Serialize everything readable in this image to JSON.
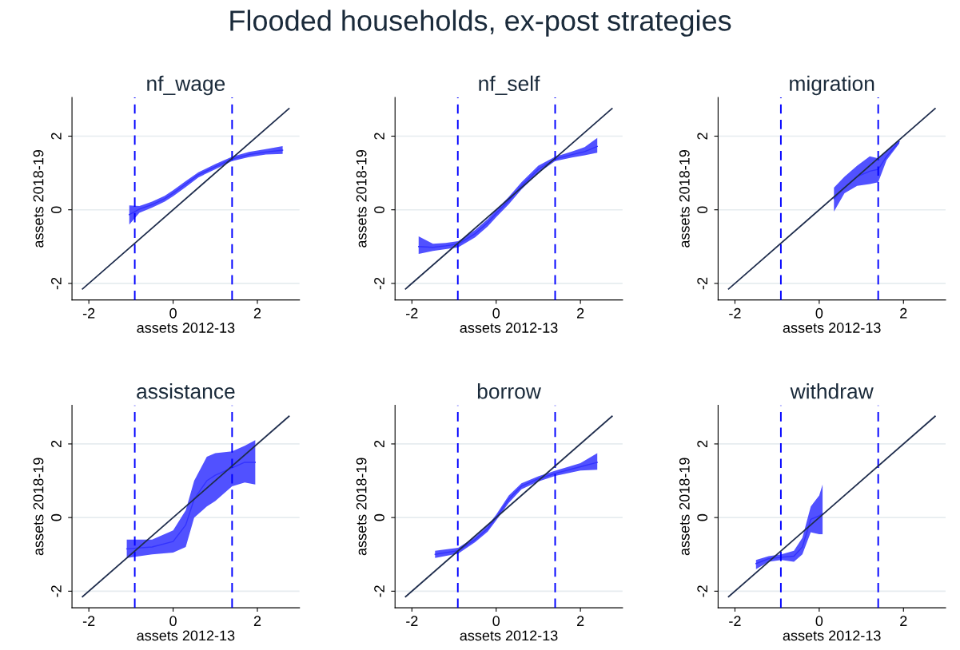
{
  "chart_data": [
    {
      "type": "line",
      "title": "nf_wage",
      "xlabel": "assets 2012-13",
      "ylabel": "assets 2018-19",
      "annotations": [
        "Flooded households, ex-post strategies"
      ],
      "xlim": [
        -2.4,
        3.0
      ],
      "ylim": [
        -2.45,
        3.05
      ],
      "xticks": [
        -2,
        0,
        2
      ],
      "yticks": [
        -2,
        0,
        2
      ],
      "grid": "y",
      "legend": false,
      "series": [
        {
          "color": "#3333ff",
          "x": [
            -1.04,
            -0.8,
            -0.5,
            -0.2,
            0,
            0.3,
            0.6,
            1.0,
            1.4,
            1.8,
            2.2,
            2.6
          ],
          "values": [
            -0.13,
            0.02,
            0.14,
            0.3,
            0.45,
            0.7,
            0.95,
            1.17,
            1.38,
            1.5,
            1.57,
            1.62
          ],
          "lower": [
            -0.4,
            -0.08,
            0.06,
            0.22,
            0.37,
            0.62,
            0.88,
            1.1,
            1.32,
            1.43,
            1.5,
            1.52
          ],
          "upper": [
            0.12,
            0.1,
            0.22,
            0.38,
            0.53,
            0.78,
            1.02,
            1.24,
            1.44,
            1.57,
            1.65,
            1.73
          ]
        },
        {
          "color": "#1f2d4d",
          "x": [
            -2.15,
            2.75
          ],
          "values": [
            -2.15,
            2.75
          ]
        }
      ],
      "ref_lines": [
        {
          "axis": "x",
          "value": -0.91,
          "color": "#0000ff",
          "line_style": "dashed"
        },
        {
          "axis": "x",
          "value": 1.4,
          "color": "#0000ff",
          "line_style": "dashed"
        }
      ]
    },
    {
      "type": "line",
      "title": "nf_self",
      "xlabel": "assets 2012-13",
      "ylabel": "assets 2018-19",
      "xlim": [
        -2.4,
        3.0
      ],
      "ylim": [
        -2.45,
        3.05
      ],
      "xticks": [
        -2,
        0,
        2
      ],
      "yticks": [
        -2,
        0,
        2
      ],
      "grid": "y",
      "legend": false,
      "series": [
        {
          "color": "#3333ff",
          "x": [
            -1.84,
            -1.5,
            -1.2,
            -0.9,
            -0.5,
            -0.2,
            0,
            0.3,
            0.6,
            1.0,
            1.4,
            1.8,
            2.1,
            2.4
          ],
          "values": [
            -1.0,
            -1.02,
            -0.98,
            -0.93,
            -0.65,
            -0.35,
            -0.1,
            0.25,
            0.65,
            1.1,
            1.38,
            1.5,
            1.58,
            1.72
          ],
          "lower": [
            -1.2,
            -1.12,
            -1.07,
            -1.02,
            -0.75,
            -0.45,
            -0.2,
            0.15,
            0.55,
            1.0,
            1.32,
            1.42,
            1.48,
            1.55
          ],
          "upper": [
            -0.72,
            -0.92,
            -0.9,
            -0.85,
            -0.55,
            -0.25,
            0.0,
            0.35,
            0.75,
            1.2,
            1.44,
            1.58,
            1.7,
            1.95
          ]
        },
        {
          "color": "#1f2d4d",
          "x": [
            -2.15,
            2.75
          ],
          "values": [
            -2.15,
            2.75
          ]
        }
      ],
      "ref_lines": [
        {
          "axis": "x",
          "value": -0.91,
          "color": "#0000ff",
          "line_style": "dashed"
        },
        {
          "axis": "x",
          "value": 1.4,
          "color": "#0000ff",
          "line_style": "dashed"
        }
      ]
    },
    {
      "type": "line",
      "title": "migration",
      "xlabel": "assets 2012-13",
      "ylabel": "assets 2018-19",
      "xlim": [
        -2.4,
        3.0
      ],
      "ylim": [
        -2.45,
        3.05
      ],
      "xticks": [
        -2,
        0,
        2
      ],
      "yticks": [
        -2,
        0,
        2
      ],
      "grid": "y",
      "legend": false,
      "series": [
        {
          "color": "#3333ff",
          "x": [
            0.35,
            0.6,
            0.9,
            1.2,
            1.4,
            1.6,
            1.9
          ],
          "values": [
            0.3,
            0.6,
            0.9,
            1.05,
            1.1,
            1.45,
            1.85
          ],
          "lower": [
            -0.05,
            0.45,
            0.65,
            0.7,
            0.75,
            1.35,
            1.8
          ],
          "upper": [
            0.6,
            0.9,
            1.2,
            1.45,
            1.4,
            1.6,
            1.88
          ]
        },
        {
          "color": "#1f2d4d",
          "x": [
            -2.15,
            2.75
          ],
          "values": [
            -2.15,
            2.75
          ]
        }
      ],
      "ref_lines": [
        {
          "axis": "x",
          "value": -0.91,
          "color": "#0000ff",
          "line_style": "dashed"
        },
        {
          "axis": "x",
          "value": 1.4,
          "color": "#0000ff",
          "line_style": "dashed"
        }
      ]
    },
    {
      "type": "line",
      "title": "assistance",
      "xlabel": "assets 2012-13",
      "ylabel": "assets 2018-19",
      "xlim": [
        -2.4,
        3.0
      ],
      "ylim": [
        -2.45,
        3.05
      ],
      "xticks": [
        -2,
        0,
        2
      ],
      "yticks": [
        -2,
        0,
        2
      ],
      "grid": "y",
      "legend": false,
      "series": [
        {
          "color": "#3333ff",
          "x": [
            -1.1,
            -0.5,
            0,
            0.3,
            0.5,
            0.8,
            1.0,
            1.4,
            1.7,
            1.95
          ],
          "values": [
            -0.85,
            -0.8,
            -0.65,
            -0.2,
            0.5,
            1.0,
            1.15,
            1.35,
            1.5,
            1.5
          ],
          "lower": [
            -1.1,
            -1.0,
            -0.95,
            -0.8,
            0.0,
            0.3,
            0.45,
            0.85,
            0.95,
            0.9
          ],
          "upper": [
            -0.6,
            -0.6,
            -0.35,
            0.2,
            1.0,
            1.65,
            1.75,
            1.8,
            1.95,
            2.1
          ]
        },
        {
          "color": "#1f2d4d",
          "x": [
            -2.15,
            2.75
          ],
          "values": [
            -2.15,
            2.75
          ]
        }
      ],
      "ref_lines": [
        {
          "axis": "x",
          "value": -0.91,
          "color": "#0000ff",
          "line_style": "dashed"
        },
        {
          "axis": "x",
          "value": 1.4,
          "color": "#0000ff",
          "line_style": "dashed"
        }
      ]
    },
    {
      "type": "line",
      "title": "borrow",
      "xlabel": "assets 2012-13",
      "ylabel": "assets 2018-19",
      "xlim": [
        -2.4,
        3.0
      ],
      "ylim": [
        -2.45,
        3.05
      ],
      "xticks": [
        -2,
        0,
        2
      ],
      "yticks": [
        -2,
        0,
        2
      ],
      "grid": "y",
      "legend": false,
      "series": [
        {
          "color": "#3333ff",
          "x": [
            -1.45,
            -0.9,
            -0.5,
            -0.2,
            0,
            0.3,
            0.6,
            1.0,
            1.4,
            2.0,
            2.4
          ],
          "values": [
            -1.0,
            -0.9,
            -0.6,
            -0.3,
            0.0,
            0.5,
            0.85,
            1.05,
            1.2,
            1.38,
            1.5
          ],
          "lower": [
            -1.1,
            -0.98,
            -0.67,
            -0.38,
            -0.08,
            0.4,
            0.77,
            0.98,
            1.13,
            1.28,
            1.3
          ],
          "upper": [
            -0.9,
            -0.82,
            -0.53,
            -0.22,
            0.08,
            0.6,
            0.93,
            1.12,
            1.27,
            1.48,
            1.75
          ]
        },
        {
          "color": "#1f2d4d",
          "x": [
            -2.15,
            2.75
          ],
          "values": [
            -2.15,
            2.75
          ]
        }
      ],
      "ref_lines": [
        {
          "axis": "x",
          "value": -0.91,
          "color": "#0000ff",
          "line_style": "dashed"
        },
        {
          "axis": "x",
          "value": 1.4,
          "color": "#0000ff",
          "line_style": "dashed"
        }
      ]
    },
    {
      "type": "line",
      "title": "withdraw",
      "xlabel": "assets 2012-13",
      "ylabel": "assets 2018-19",
      "xlim": [
        -2.4,
        3.0
      ],
      "ylim": [
        -2.45,
        3.05
      ],
      "xticks": [
        -2,
        0,
        2
      ],
      "yticks": [
        -2,
        0,
        2
      ],
      "grid": "y",
      "legend": false,
      "series": [
        {
          "color": "#3333ff",
          "x": [
            -1.5,
            -1.2,
            -0.9,
            -0.6,
            -0.4,
            -0.2,
            0.0,
            0.08
          ],
          "values": [
            -1.25,
            -1.12,
            -1.08,
            -1.05,
            -0.8,
            -0.05,
            0.05,
            0.1
          ],
          "lower": [
            -1.4,
            -1.2,
            -1.15,
            -1.2,
            -1.0,
            -0.4,
            -0.45,
            -0.45
          ],
          "upper": [
            -1.15,
            -1.05,
            -1.0,
            -0.9,
            -0.55,
            0.3,
            0.6,
            0.9
          ]
        },
        {
          "color": "#1f2d4d",
          "x": [
            -2.15,
            2.75
          ],
          "values": [
            -2.15,
            2.75
          ]
        }
      ],
      "ref_lines": [
        {
          "axis": "x",
          "value": -0.91,
          "color": "#0000ff",
          "line_style": "dashed"
        },
        {
          "axis": "x",
          "value": 1.4,
          "color": "#0000ff",
          "line_style": "dashed"
        }
      ]
    }
  ]
}
